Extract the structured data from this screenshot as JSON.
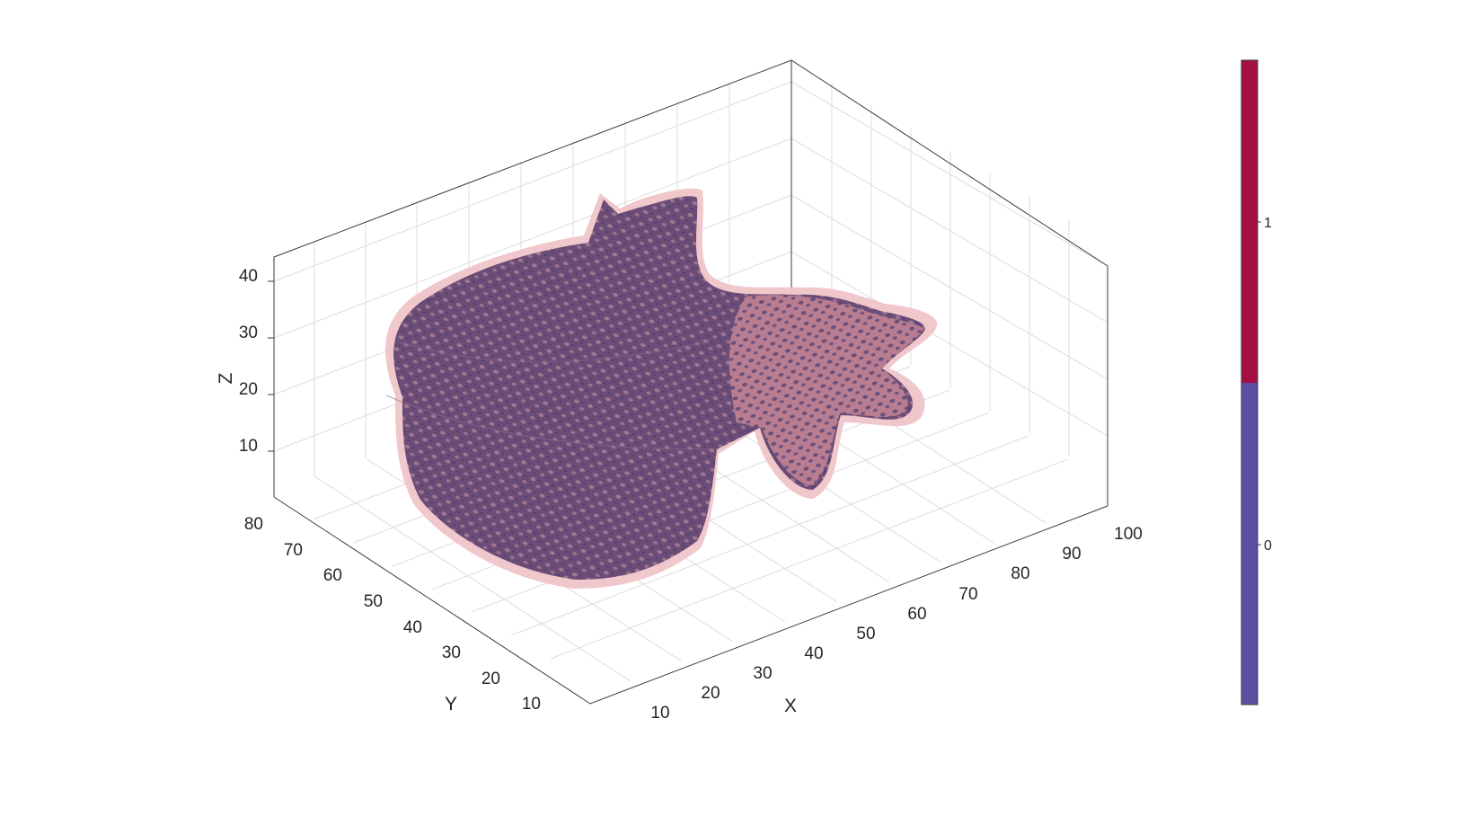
{
  "chart_data": {
    "type": "3d-surface-isosurface",
    "title": "",
    "xlabel": "X",
    "ylabel": "Y",
    "zlabel": "Z",
    "xlim": [
      0,
      100
    ],
    "ylim": [
      0,
      80
    ],
    "zlim": [
      0,
      45
    ],
    "x_ticks": [
      "10",
      "20",
      "30",
      "40",
      "50",
      "60",
      "70",
      "80",
      "90",
      "100"
    ],
    "y_ticks": [
      "10",
      "20",
      "30",
      "40",
      "50",
      "60",
      "70",
      "80"
    ],
    "z_ticks": [
      "10",
      "20",
      "30",
      "40"
    ],
    "grid": true,
    "view": "3d-perspective",
    "series": [
      {
        "name": "",
        "label_value": 1,
        "color": "#a50f43",
        "style": "translucent outer surface"
      },
      {
        "name": "",
        "label_value": 0,
        "color": "#5e4fa2",
        "style": "porous inner structure"
      }
    ],
    "colorbar": {
      "position": "right",
      "ticks": [
        "1",
        "0"
      ],
      "segments": [
        {
          "value": 1,
          "color": "#a50f43"
        },
        {
          "value": 0,
          "color": "#5e4fa2"
        }
      ]
    }
  }
}
